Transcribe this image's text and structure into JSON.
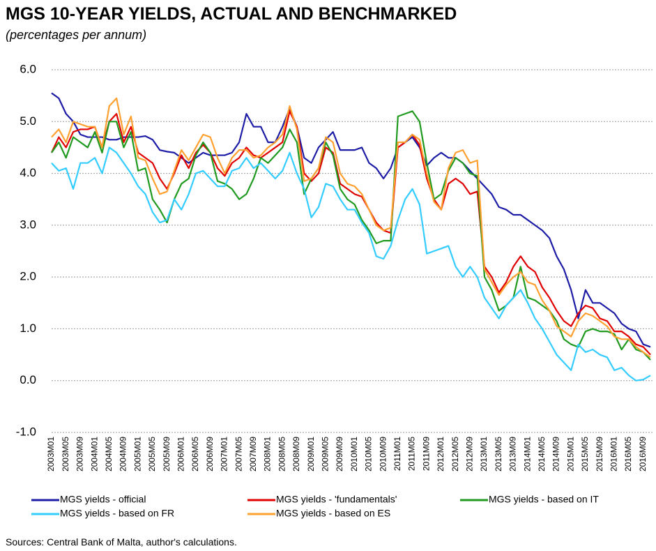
{
  "chart_data": {
    "type": "line",
    "title": "MGS 10-YEAR YIELDS, ACTUAL AND BENCHMARKED",
    "subtitle": "(percentages per annum)",
    "source": "Sources: Central Bank of Malta, author's calculations.",
    "categories": [
      "2003M01",
      null,
      "2003M05",
      null,
      "2003M09",
      null,
      "2004M01",
      null,
      "2004M05",
      null,
      "2004M09",
      null,
      "2005M01",
      null,
      "2005M05",
      null,
      "2005M09",
      null,
      "2006M01",
      null,
      "2006M05",
      null,
      "2006M09",
      null,
      "2007M01",
      null,
      "2007M05",
      null,
      "2007M09",
      null,
      "2008M01",
      null,
      "2008M05",
      null,
      "2008M09",
      null,
      "2009M01",
      null,
      "2009M05",
      null,
      "2009M09",
      null,
      "2010M01",
      null,
      "2010M05",
      null,
      "2010M09",
      null,
      "2011M01",
      null,
      "2011M05",
      null,
      "2011M09",
      null,
      "2012M01",
      null,
      "2012M05",
      null,
      "2012M09",
      null,
      "2013M01",
      null,
      "2013M05",
      null,
      "2013M09",
      null,
      "2014M01",
      null,
      "2014M05",
      null,
      "2014M09",
      null,
      "2015M01",
      null,
      "2015M05",
      null,
      "2015M09",
      null,
      "2016M01",
      null,
      "2016M05",
      null,
      "2016M09",
      null
    ],
    "series": [
      {
        "name": "MGS yields - official",
        "color": "#1c1ca6",
        "values": [
          5.55,
          5.45,
          5.15,
          5.0,
          4.75,
          4.7,
          4.7,
          4.7,
          4.65,
          4.65,
          4.7,
          4.7,
          4.7,
          4.72,
          4.65,
          4.45,
          4.42,
          4.4,
          4.3,
          4.2,
          4.3,
          4.4,
          4.35,
          4.35,
          4.35,
          4.4,
          4.6,
          5.15,
          4.9,
          4.9,
          4.6,
          4.6,
          4.9,
          5.25,
          4.9,
          4.3,
          4.2,
          4.5,
          4.65,
          4.8,
          4.45,
          4.45,
          4.45,
          4.5,
          4.2,
          4.1,
          3.9,
          4.1,
          4.5,
          4.6,
          4.7,
          4.5,
          4.15,
          4.3,
          4.4,
          4.3,
          4.3,
          4.2,
          4.05,
          3.9,
          3.75,
          3.6,
          3.35,
          3.3,
          3.2,
          3.2,
          3.1,
          3.0,
          2.9,
          2.75,
          2.4,
          2.15,
          1.75,
          1.2,
          1.75,
          1.5,
          1.5,
          1.4,
          1.3,
          1.1,
          1.0,
          0.95,
          0.7,
          0.65
        ]
      },
      {
        "name": "MGS yields - 'fundamentals'",
        "color": "#e00000",
        "values": [
          4.4,
          4.7,
          4.5,
          4.8,
          4.85,
          4.85,
          4.9,
          4.5,
          5.0,
          5.15,
          4.6,
          4.9,
          4.4,
          4.3,
          4.2,
          3.9,
          3.7,
          4.0,
          4.35,
          4.1,
          4.4,
          4.55,
          4.4,
          4.1,
          3.95,
          4.2,
          4.3,
          4.5,
          4.35,
          4.3,
          4.4,
          4.5,
          4.6,
          5.2,
          4.9,
          4.0,
          3.85,
          4.0,
          4.5,
          4.4,
          3.8,
          3.7,
          3.6,
          3.55,
          3.3,
          3.05,
          2.9,
          2.85,
          4.5,
          4.6,
          4.75,
          4.55,
          3.9,
          3.5,
          3.3,
          3.8,
          3.9,
          3.8,
          3.6,
          3.65,
          2.2,
          2.0,
          1.7,
          1.9,
          2.2,
          2.4,
          2.2,
          2.1,
          1.8,
          1.6,
          1.35,
          1.15,
          1.05,
          1.3,
          1.45,
          1.4,
          1.2,
          1.15,
          0.95,
          0.95,
          0.85,
          0.7,
          0.65,
          0.5
        ]
      },
      {
        "name": "MGS yields - based on IT",
        "color": "#1f9a1f",
        "values": [
          4.4,
          4.6,
          4.3,
          4.7,
          4.6,
          4.5,
          4.8,
          4.4,
          5.0,
          5.0,
          4.5,
          4.8,
          4.05,
          4.1,
          3.5,
          3.3,
          3.05,
          3.5,
          3.8,
          3.9,
          4.35,
          4.6,
          4.4,
          3.85,
          3.8,
          3.7,
          3.5,
          3.6,
          3.9,
          4.3,
          4.2,
          4.35,
          4.5,
          4.85,
          4.6,
          3.6,
          3.9,
          4.1,
          4.6,
          4.35,
          3.7,
          3.5,
          3.4,
          3.1,
          2.9,
          2.65,
          2.7,
          2.7,
          5.1,
          5.15,
          5.2,
          5.0,
          4.2,
          3.5,
          3.6,
          4.05,
          4.3,
          4.2,
          4.0,
          3.95,
          2.0,
          1.75,
          1.35,
          1.45,
          1.6,
          2.2,
          1.6,
          1.55,
          1.45,
          1.35,
          1.15,
          0.8,
          0.7,
          0.65,
          0.95,
          1.0,
          0.95,
          0.95,
          0.9,
          0.6,
          0.8,
          0.6,
          0.55,
          0.4
        ]
      },
      {
        "name": "MGS yields - based on FR",
        "color": "#33ccff",
        "values": [
          4.2,
          4.05,
          4.1,
          3.7,
          4.2,
          4.2,
          4.3,
          4.0,
          4.5,
          4.4,
          4.2,
          4.0,
          3.75,
          3.6,
          3.25,
          3.05,
          3.1,
          3.5,
          3.3,
          3.6,
          4.0,
          4.05,
          3.9,
          3.75,
          3.75,
          4.05,
          4.1,
          4.3,
          4.1,
          4.2,
          4.05,
          3.9,
          4.05,
          4.4,
          4.0,
          3.7,
          3.15,
          3.35,
          3.8,
          3.75,
          3.5,
          3.3,
          3.3,
          3.05,
          2.85,
          2.4,
          2.35,
          2.6,
          3.1,
          3.5,
          3.7,
          3.4,
          2.45,
          2.5,
          2.55,
          2.6,
          2.2,
          2.0,
          2.2,
          2.0,
          1.6,
          1.4,
          1.2,
          1.45,
          1.6,
          1.75,
          1.5,
          1.2,
          1.0,
          0.75,
          0.5,
          0.35,
          0.2,
          0.7,
          0.55,
          0.6,
          0.5,
          0.45,
          0.2,
          0.25,
          0.1,
          0.0,
          0.02,
          0.1
        ]
      },
      {
        "name": "MGS yields - based on ES",
        "color": "#ffa030",
        "values": [
          4.7,
          4.85,
          4.6,
          5.0,
          4.95,
          4.9,
          4.9,
          4.5,
          5.3,
          5.45,
          4.75,
          5.1,
          4.3,
          4.25,
          3.9,
          3.6,
          3.65,
          4.05,
          4.45,
          4.25,
          4.5,
          4.75,
          4.7,
          4.3,
          4.0,
          4.3,
          4.45,
          4.45,
          4.3,
          4.35,
          4.5,
          4.6,
          4.75,
          5.3,
          4.85,
          3.85,
          3.9,
          4.1,
          4.7,
          4.6,
          4.0,
          3.8,
          3.75,
          3.6,
          3.3,
          3.0,
          2.9,
          2.95,
          4.6,
          4.6,
          4.75,
          4.65,
          4.0,
          3.45,
          3.3,
          4.1,
          4.4,
          4.45,
          4.2,
          4.25,
          2.15,
          1.9,
          1.65,
          1.85,
          2.0,
          2.1,
          1.9,
          1.85,
          1.55,
          1.35,
          1.05,
          0.95,
          0.85,
          1.15,
          1.3,
          1.25,
          1.15,
          1.05,
          0.85,
          0.8,
          0.8,
          0.65,
          0.55,
          0.45
        ]
      }
    ],
    "ylim": [
      -1,
      6
    ],
    "yticks": [
      {
        "value": -1,
        "label": "-1.0"
      },
      {
        "value": 0,
        "label": "0.0"
      },
      {
        "value": 1,
        "label": "1.0"
      },
      {
        "value": 2,
        "label": "2.0"
      },
      {
        "value": 3,
        "label": "3.0"
      },
      {
        "value": 4,
        "label": "4.0"
      },
      {
        "value": 5,
        "label": "5.0"
      },
      {
        "value": 6,
        "label": "6.0"
      }
    ],
    "grid": true
  }
}
